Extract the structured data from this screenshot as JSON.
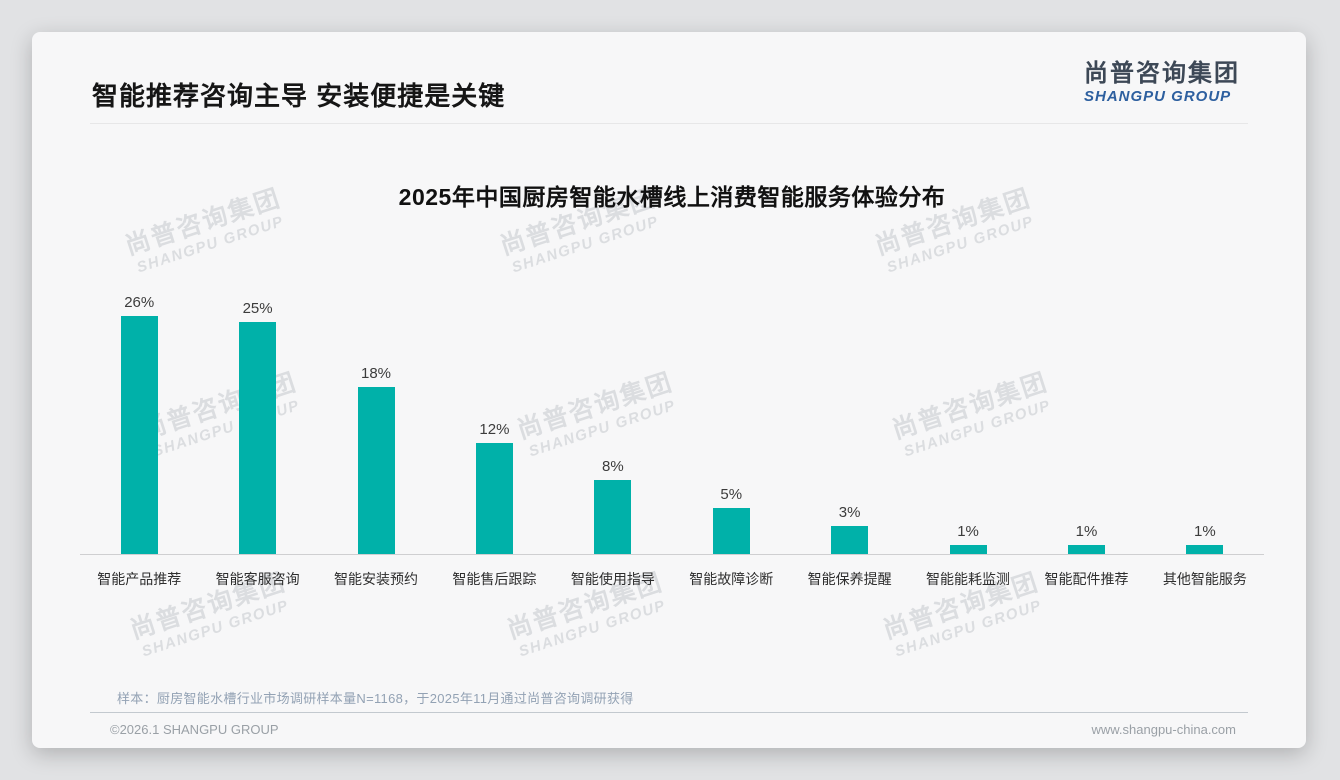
{
  "page": {
    "title": "智能推荐咨询主导 安装便捷是关键",
    "logo": {
      "cn": "尚普咨询集团",
      "en": "SHANGPU GROUP"
    },
    "watermark": {
      "line1": "尚普咨询集团",
      "line2": "SHANGPU GROUP"
    },
    "note": "样本：厨房智能水槽行业市场调研样本量N=1168，于2025年11月通过尚普咨询调研获得",
    "footer": {
      "left": "©2026.1 SHANGPU GROUP",
      "right": "www.shangpu-china.com"
    }
  },
  "colors": {
    "bar": "#00b1a9",
    "logo_cn": "#3d4856",
    "logo_en": "#2d5f9f",
    "note_text": "#93a2b4"
  },
  "chart_data": {
    "type": "bar",
    "title": "2025年中国厨房智能水槽线上消费智能服务体验分布",
    "categories": [
      "智能产品推荐",
      "智能客服咨询",
      "智能安装预约",
      "智能售后跟踪",
      "智能使用指导",
      "智能故障诊断",
      "智能保养提醒",
      "智能能耗监测",
      "智能配件推荐",
      "其他智能服务"
    ],
    "values": [
      26,
      25,
      18,
      12,
      8,
      5,
      3,
      1,
      1,
      1
    ],
    "value_labels": [
      "26%",
      "25%",
      "18%",
      "12%",
      "8%",
      "5%",
      "3%",
      "1%",
      "1%",
      "1%"
    ],
    "unit": "%",
    "ylim": [
      0,
      28
    ],
    "grid": false,
    "legend": "none",
    "bar_color": "#00b1a9"
  }
}
